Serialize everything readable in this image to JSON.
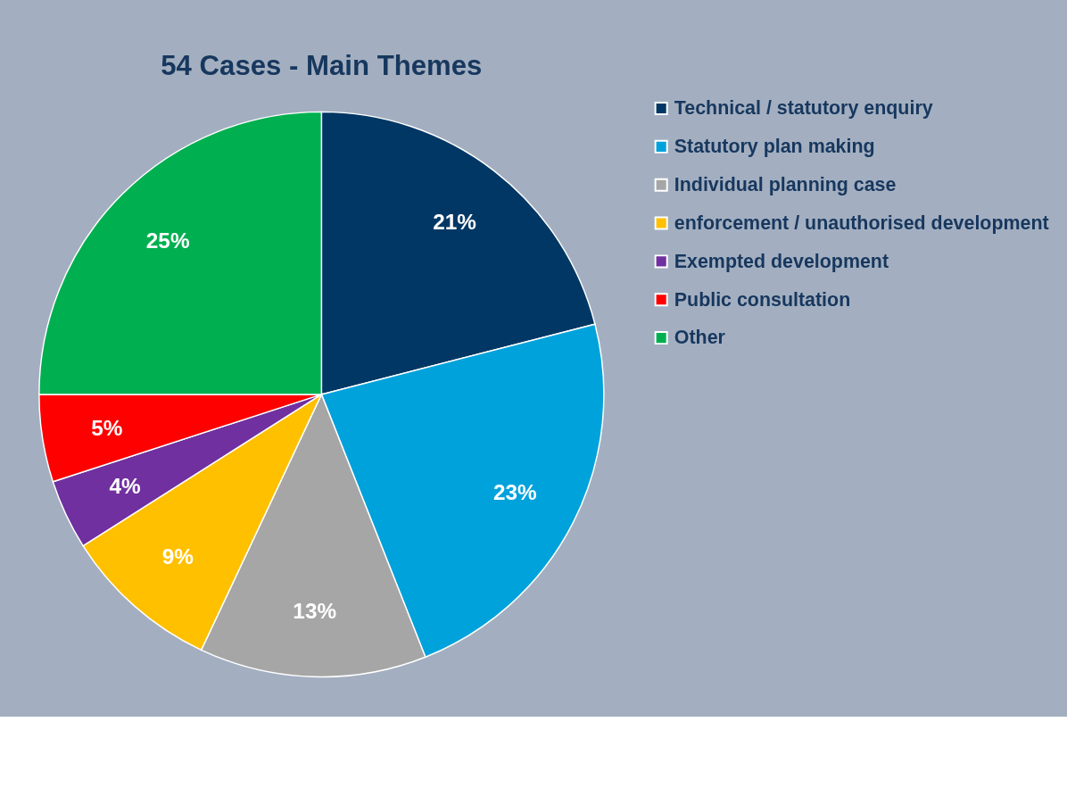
{
  "chart_data": {
    "type": "pie",
    "title": "54 Cases - Main Themes",
    "categories": [
      "Technical / statutory enquiry",
      "Statutory plan making",
      "Individual planning case",
      "enforcement / unauthorised development",
      "Exempted development",
      "Public consultation",
      "Other"
    ],
    "values": [
      21,
      23,
      13,
      9,
      4,
      5,
      25
    ],
    "colors": [
      "#003764",
      "#00a2dc",
      "#a6a6a6",
      "#ffc000",
      "#7030a0",
      "#ff0000",
      "#00b050"
    ],
    "value_labels": [
      "21%",
      "23%",
      "13%",
      "9%",
      "4%",
      "5%",
      "25%"
    ],
    "legend": "right"
  }
}
